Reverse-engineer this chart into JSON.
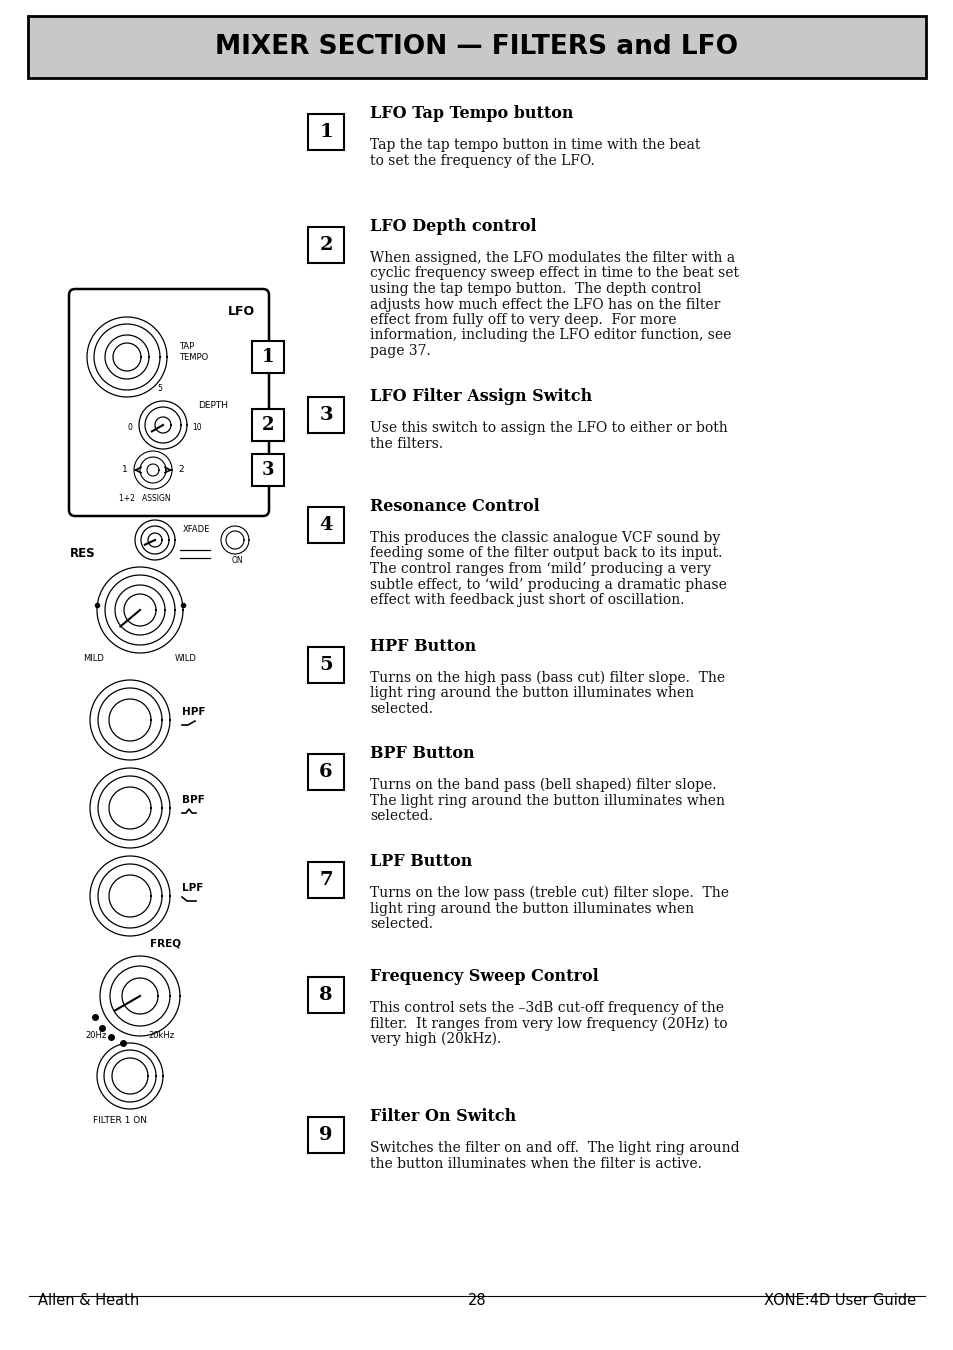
{
  "title": "MIXER SECTION — FILTERS and LFO",
  "title_bg": "#c8c8c8",
  "title_border": "#000000",
  "page_bg": "#ffffff",
  "footer_left": "Allen & Heath",
  "footer_center": "28",
  "footer_right": "XONE:4D User Guide",
  "sections": [
    {
      "number": "1",
      "heading": "LFO Tap Tempo button",
      "body": "Tap the tap tempo button in time with the beat\nto set the frequency of the LFO."
    },
    {
      "number": "2",
      "heading": "LFO Depth control",
      "body": "When assigned, the LFO modulates the filter with a\ncyclic frequency sweep effect in time to the beat set\nusing the tap tempo button.  The depth control\nadjusts how much effect the LFO has on the filter\neffect from fully off to very deep.  For more\ninformation, including the LFO editor function, see\npage 37."
    },
    {
      "number": "3",
      "heading": "LFO Filter Assign Switch",
      "body": "Use this switch to assign the LFO to either or both\nthe filters."
    },
    {
      "number": "4",
      "heading": "Resonance Control",
      "body": "This produces the classic analogue VCF sound by\nfeeding some of the filter output back to its input.\nThe control ranges from ‘mild’ producing a very\nsubtle effect, to ‘wild’ producing a dramatic phase\neffect with feedback just short of oscillation."
    },
    {
      "number": "5",
      "heading": "HPF Button",
      "body": "Turns on the high pass (bass cut) filter slope.  The\nlight ring around the button illuminates when\nselected."
    },
    {
      "number": "6",
      "heading": "BPF Button",
      "body": "Turns on the band pass (bell shaped) filter slope.\nThe light ring around the button illuminates when\nselected."
    },
    {
      "number": "7",
      "heading": "LPF Button",
      "body": "Turns on the low pass (treble cut) filter slope.  The\nlight ring around the button illuminates when\nselected."
    },
    {
      "number": "8",
      "heading": "Frequency Sweep Control",
      "body": "This control sets the –3dB cut-off frequency of the\nfilter.  It ranges from very low frequency (20Hz) to\nvery high (20kHz)."
    },
    {
      "number": "9",
      "heading": "Filter On Switch",
      "body": "Switches the filter on and off.  The light ring around\nthe button illuminates when the filter is active."
    }
  ]
}
